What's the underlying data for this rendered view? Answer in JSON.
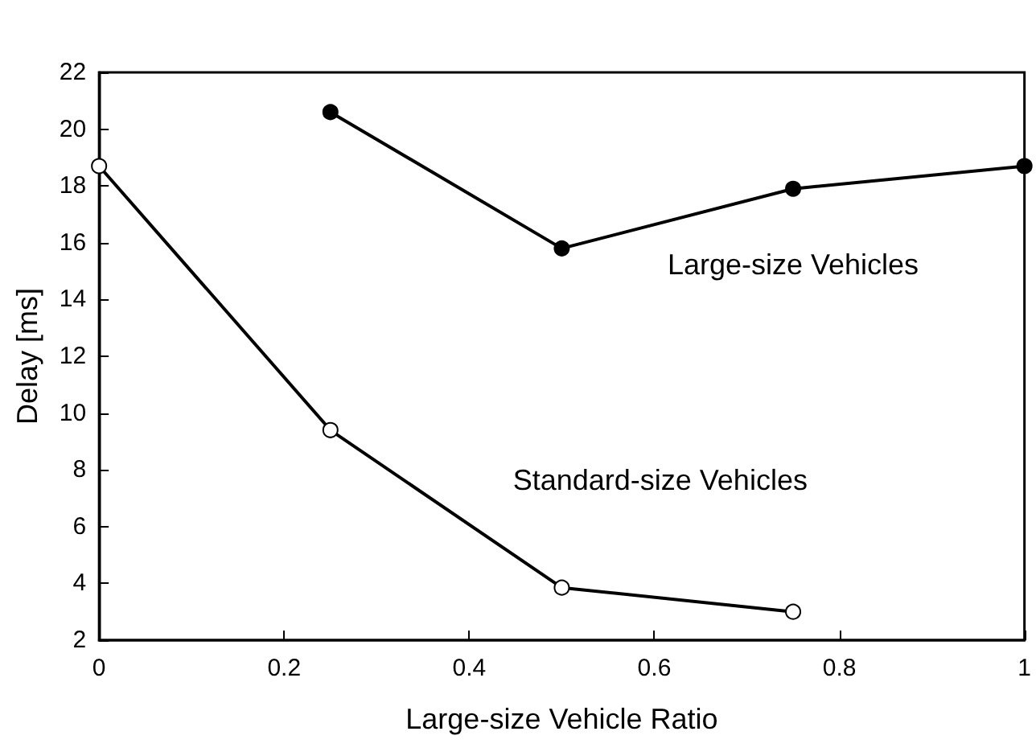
{
  "chart_data": {
    "type": "line",
    "xlabel": "Large-size Vehicle Ratio",
    "ylabel": "Delay [ms]",
    "xlim": [
      0,
      1
    ],
    "xticks": [
      0,
      0.2,
      0.4,
      0.6,
      0.8,
      1
    ],
    "ylim": [
      2,
      22
    ],
    "yticks": [
      2,
      4,
      6,
      8,
      10,
      12,
      14,
      16,
      18,
      20,
      22
    ],
    "grid": false,
    "legend": false,
    "marker": "circle",
    "line_style": "solid",
    "series": [
      {
        "name": "Large-size Vehicles",
        "color": "#000000",
        "x": [
          0.25,
          0.5,
          0.75,
          1
        ],
        "values": [
          20.6,
          15.8,
          17.9,
          18.7
        ]
      },
      {
        "name": "Standard-size Vehicles",
        "color": "#000000",
        "x": [
          0,
          0.25,
          0.5,
          0.75
        ],
        "values": [
          18.7,
          9.4,
          3.85,
          3.0
        ]
      }
    ]
  }
}
